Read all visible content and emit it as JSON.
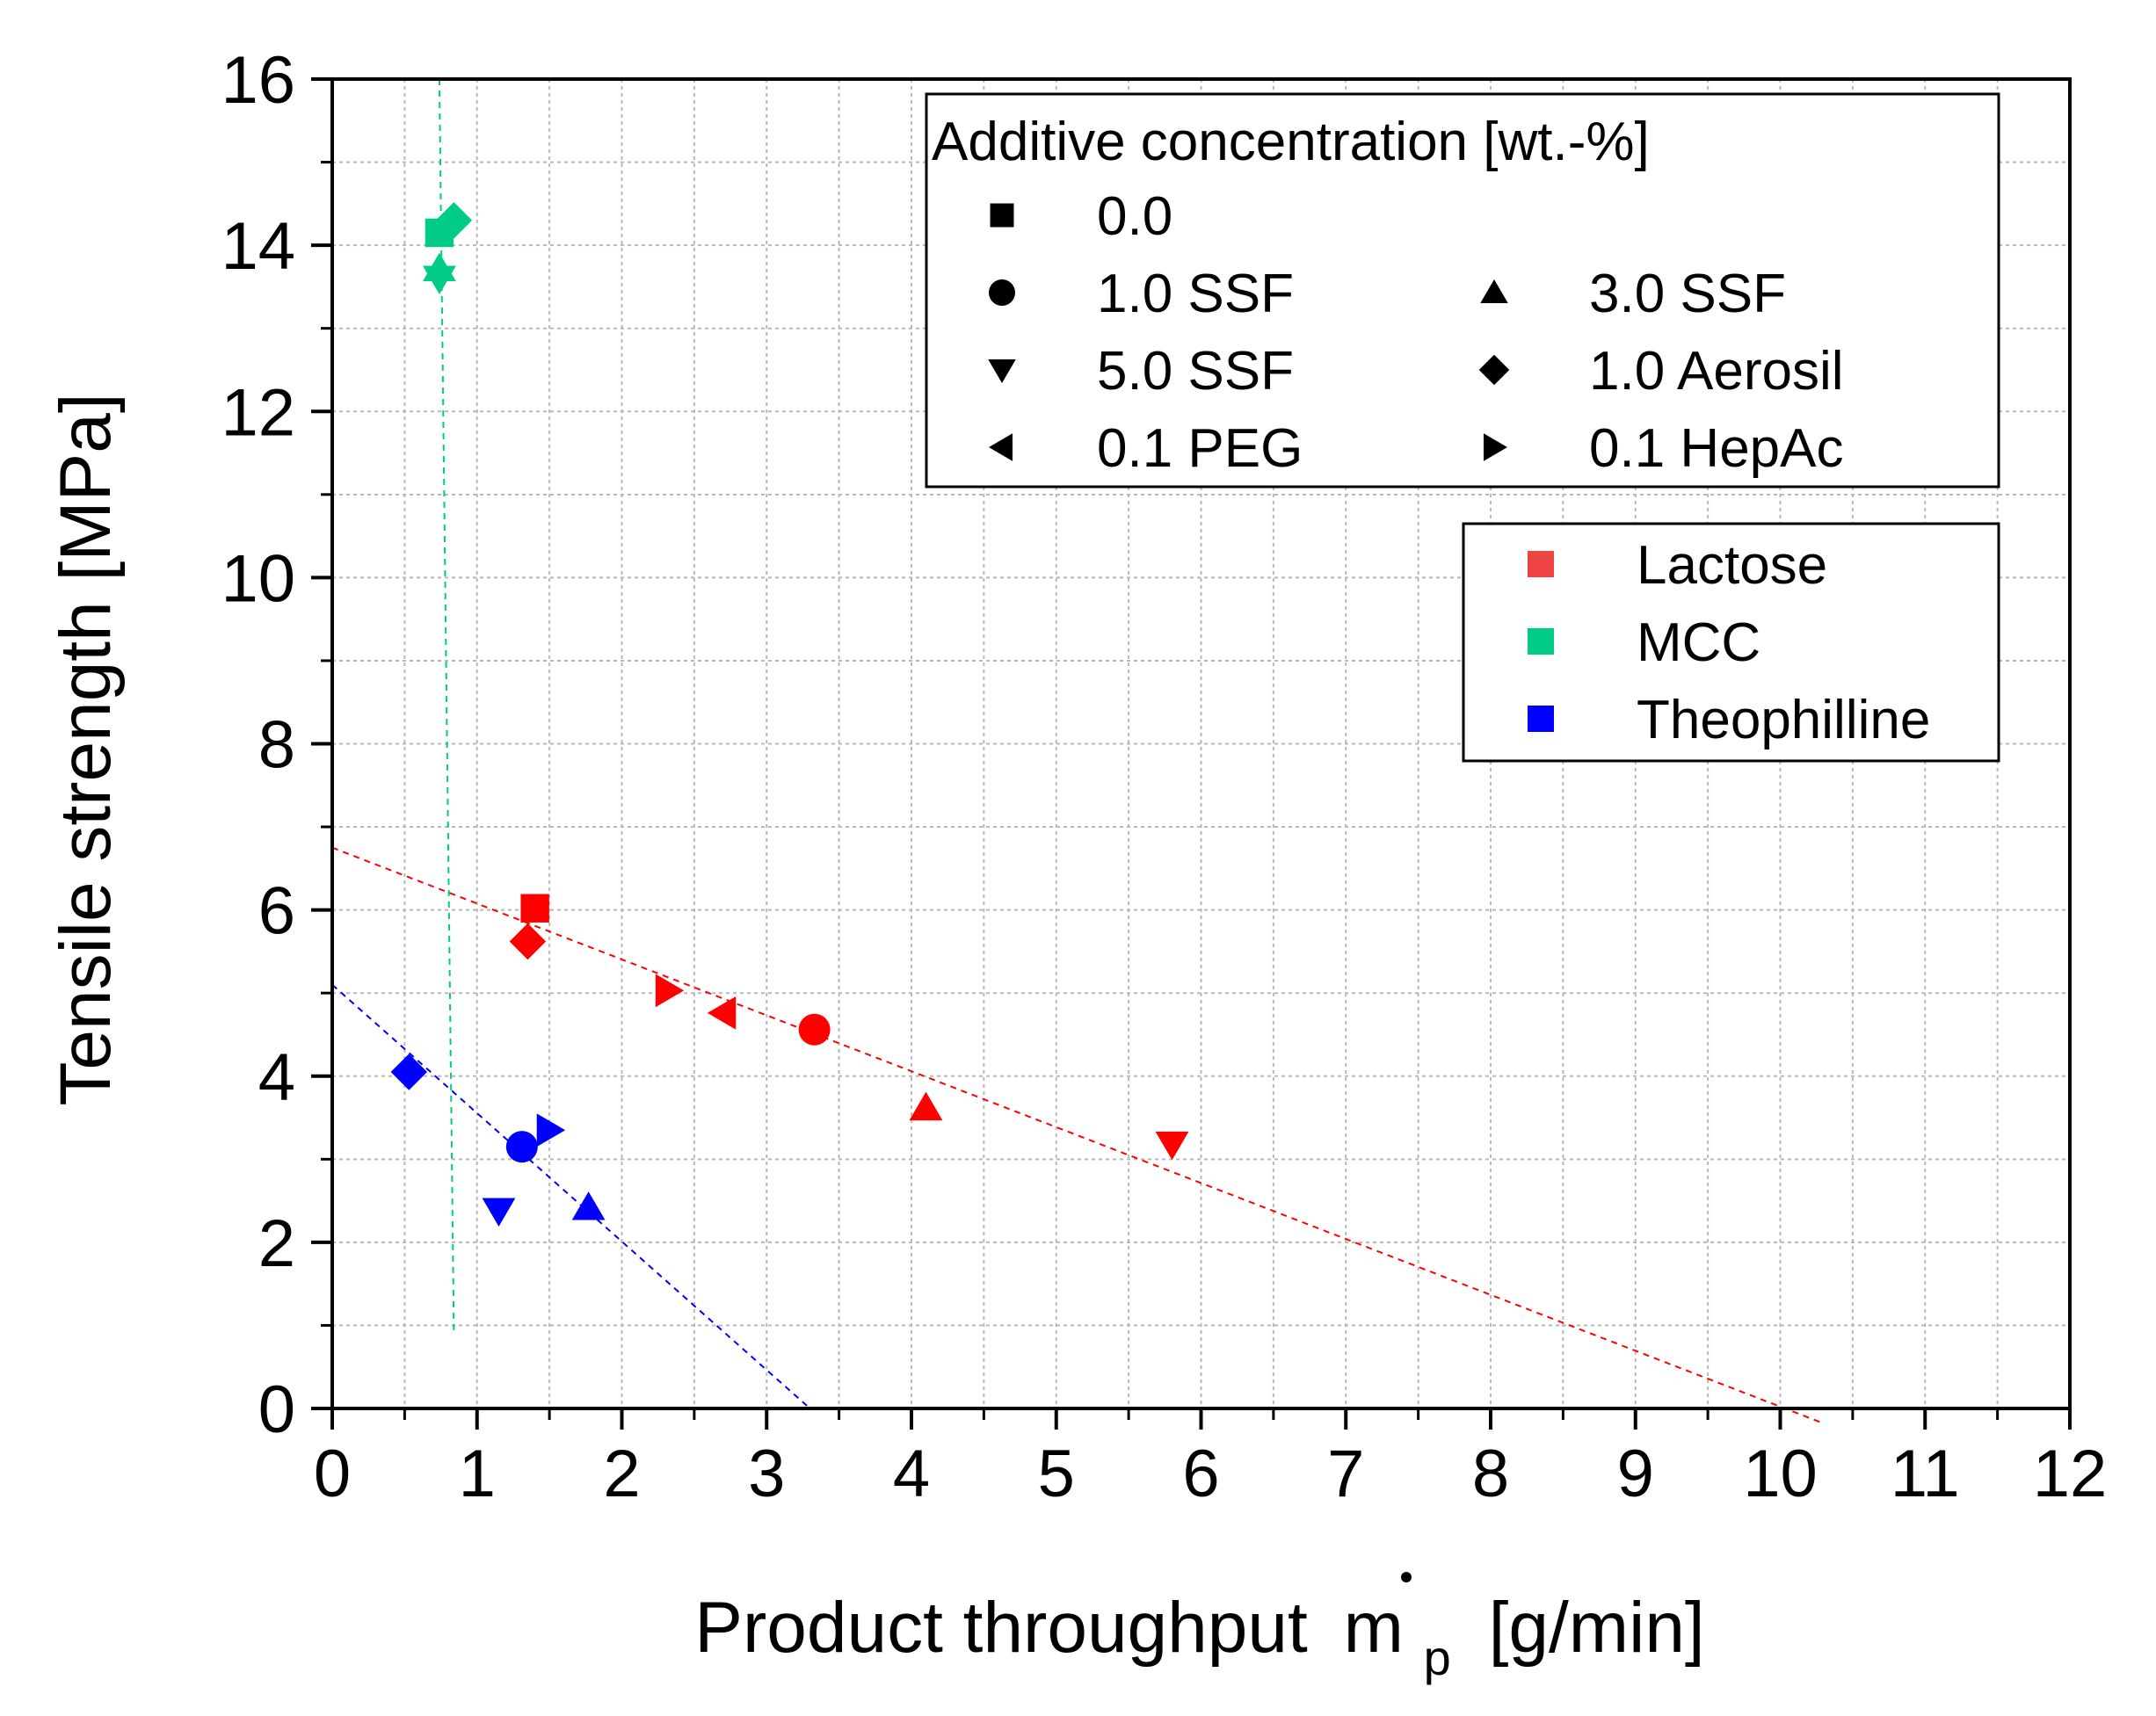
{
  "chart_data": {
    "type": "scatter",
    "xlabel": "Product throughput",
    "xlabel_symbol": "m",
    "xlabel_subscript": "p",
    "xlabel_unit": "[g/min]",
    "ylabel": "Tensile strength [MPa]",
    "xlim": [
      0,
      12
    ],
    "ylim": [
      0,
      16
    ],
    "xticks": [
      0,
      1,
      2,
      3,
      4,
      5,
      6,
      7,
      8,
      9,
      10,
      11,
      12
    ],
    "yticks": [
      0,
      2,
      4,
      6,
      8,
      10,
      12,
      14,
      16
    ],
    "grid": true,
    "colors": {
      "Lactose": "#ff0000",
      "Lactose_legend": "#ee4444",
      "MCC": "#00cc88",
      "Theophilline": "#0000ff"
    },
    "materials": [
      "Lactose",
      "MCC",
      "Theophilline"
    ],
    "additive_legend_title": "Additive concentration [wt.-%]",
    "additive_legend": [
      {
        "marker": "square",
        "label": "0.0"
      },
      {
        "marker": "circle",
        "label": "1.0 SSF"
      },
      {
        "marker": "triangle-up",
        "label": "3.0 SSF"
      },
      {
        "marker": "triangle-down",
        "label": "5.0 SSF"
      },
      {
        "marker": "diamond",
        "label": "1.0 Aerosil"
      },
      {
        "marker": "triangle-left",
        "label": "0.1 PEG"
      },
      {
        "marker": "triangle-right",
        "label": "0.1 HepAc"
      }
    ],
    "series": [
      {
        "name": "Lactose",
        "points": [
          {
            "x": 1.4,
            "y": 6.02,
            "marker": "square",
            "additive": "0.0"
          },
          {
            "x": 1.35,
            "y": 5.62,
            "marker": "diamond",
            "additive": "1.0 Aerosil"
          },
          {
            "x": 2.32,
            "y": 5.03,
            "marker": "triangle-right",
            "additive": "0.1 HepAc"
          },
          {
            "x": 2.7,
            "y": 4.76,
            "marker": "triangle-left",
            "additive": "0.1 PEG"
          },
          {
            "x": 3.33,
            "y": 4.56,
            "marker": "circle",
            "additive": "1.0 SSF"
          },
          {
            "x": 4.1,
            "y": 3.62,
            "marker": "triangle-up",
            "additive": "3.0 SSF"
          },
          {
            "x": 5.8,
            "y": 3.18,
            "marker": "triangle-down",
            "additive": "5.0 SSF"
          }
        ],
        "fit": {
          "x": [
            0,
            10.3
          ],
          "y": [
            6.75,
            -0.18
          ]
        }
      },
      {
        "name": "MCC",
        "points": [
          {
            "x": 0.74,
            "y": 14.15,
            "marker": "square",
            "additive": "0.0"
          },
          {
            "x": 0.84,
            "y": 14.3,
            "marker": "diamond",
            "additive": "1.0 Aerosil"
          },
          {
            "x": 0.74,
            "y": 13.72,
            "marker": "triangle-up",
            "additive": "3.0 SSF"
          },
          {
            "x": 0.74,
            "y": 13.6,
            "marker": "triangle-down",
            "additive": "5.0 SSF"
          }
        ],
        "fit": {
          "x": [
            0.74,
            0.84
          ],
          "y": [
            16.0,
            0.9
          ]
        }
      },
      {
        "name": "Theophilline",
        "points": [
          {
            "x": 0.53,
            "y": 4.05,
            "marker": "diamond",
            "additive": "1.0 Aerosil"
          },
          {
            "x": 1.31,
            "y": 3.15,
            "marker": "circle",
            "additive": "1.0 SSF"
          },
          {
            "x": 1.5,
            "y": 3.35,
            "marker": "triangle-right",
            "additive": "0.1 HepAc"
          },
          {
            "x": 1.15,
            "y": 2.38,
            "marker": "triangle-down",
            "additive": "5.0 SSF"
          },
          {
            "x": 1.77,
            "y": 2.42,
            "marker": "triangle-up",
            "additive": "3.0 SSF"
          }
        ],
        "fit": {
          "x": [
            0,
            3.3
          ],
          "y": [
            5.1,
            0
          ]
        }
      }
    ]
  }
}
